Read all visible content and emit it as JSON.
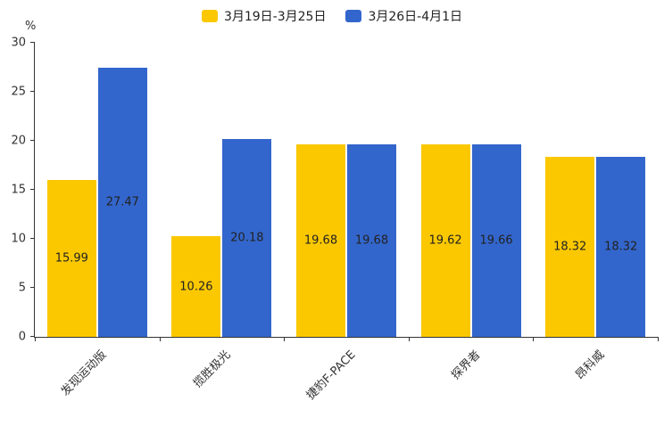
{
  "chart_data": {
    "type": "bar",
    "title": "",
    "categories": [
      "发现运动版",
      "揽胜极光",
      "捷豹F-PACE",
      "探界者",
      "昂科威"
    ],
    "series": [
      {
        "name": "3月19日-3月25日",
        "color": "#FBC800",
        "values": [
          15.99,
          10.26,
          19.68,
          19.62,
          18.32
        ]
      },
      {
        "name": "3月26日-4月1日",
        "color": "#3366CC",
        "values": [
          27.47,
          20.18,
          19.68,
          19.66,
          18.32
        ]
      }
    ],
    "xlabel": "",
    "ylabel": "",
    "y_unit": "%",
    "ylim": [
      0,
      30
    ],
    "ytick_step": 5,
    "grid": false,
    "legend_position": "top-center",
    "value_labels": "inside-bar-centered",
    "xlabel_rotation_deg": 45,
    "colors": {
      "axis": "#333333",
      "value_text": "#222222",
      "background": "#ffffff"
    }
  }
}
